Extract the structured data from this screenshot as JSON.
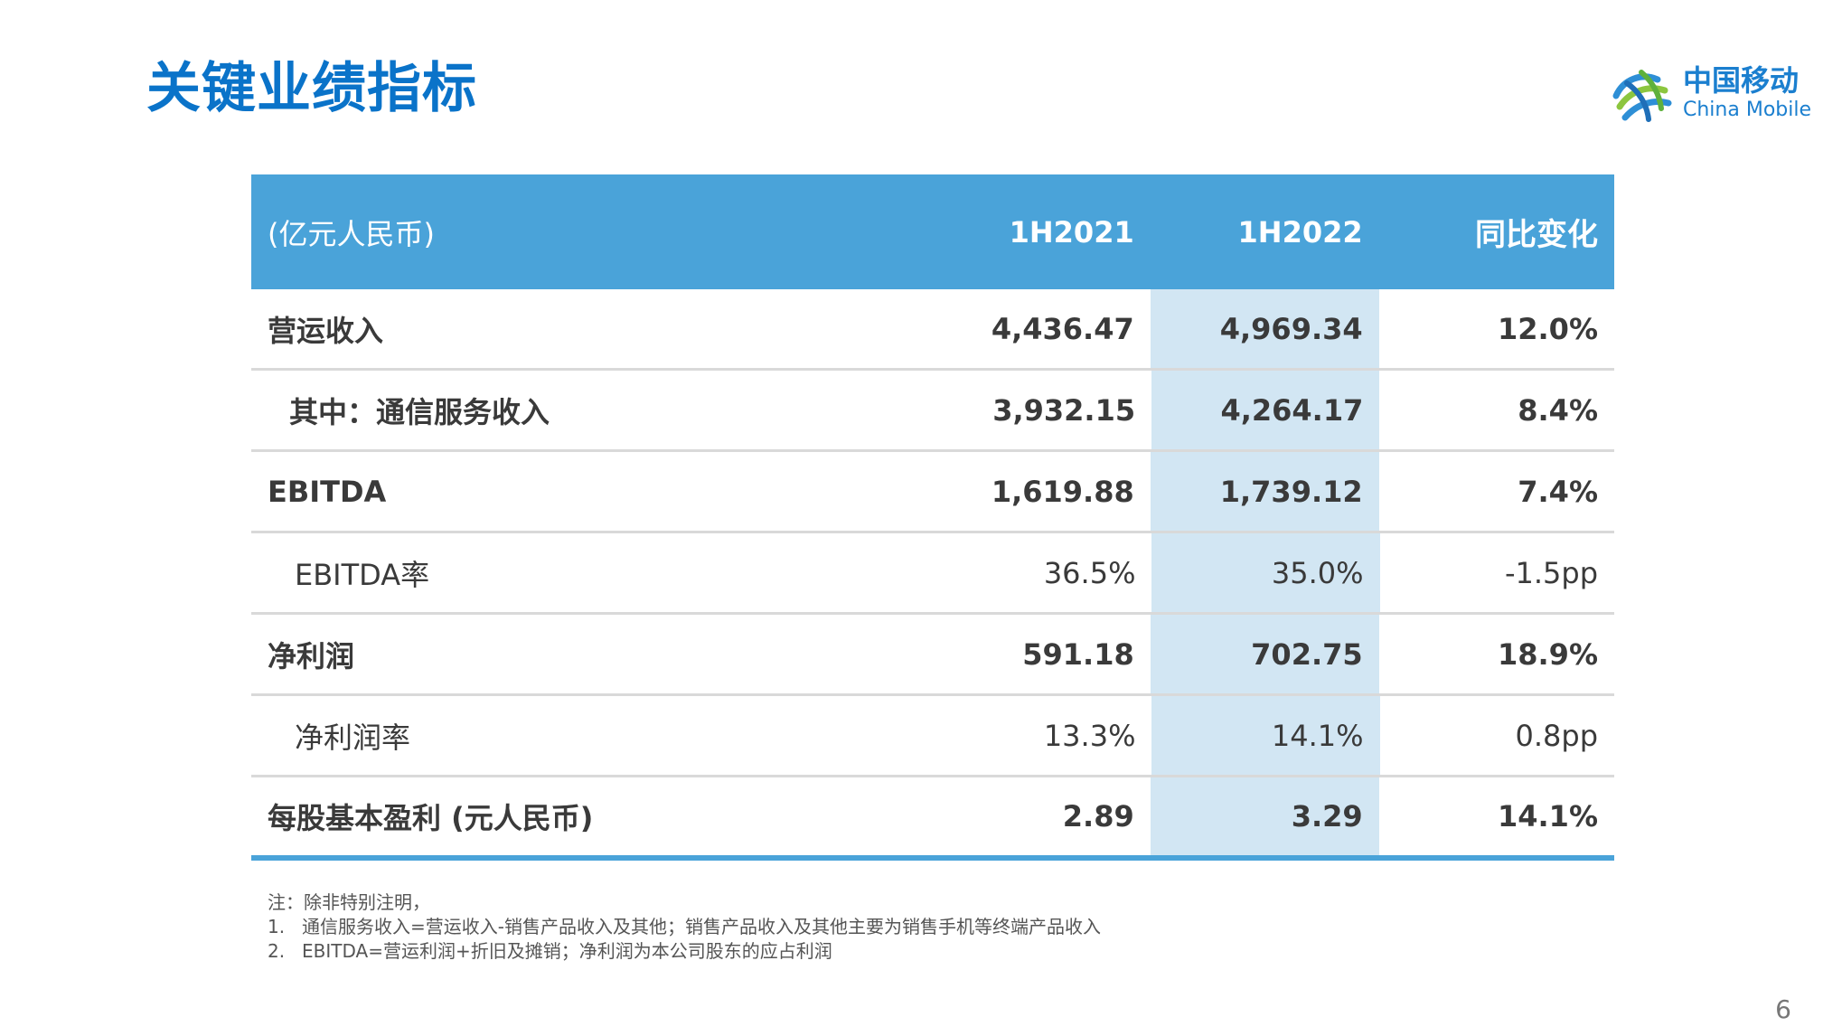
{
  "title": "关键业绩指标",
  "logo": {
    "cn": "中国移动",
    "en": "China Mobile",
    "icon": "china-mobile-logo-icon"
  },
  "table": {
    "headers": {
      "label": "(亿元人民币)",
      "col1": "1H2021",
      "col2": "1H2022",
      "col3": "同比变化"
    },
    "rows": [
      {
        "label": "营运收入",
        "v1": "4,436.47",
        "v2": "4,969.34",
        "v3": "12.0%"
      },
      {
        "label": "其中：通信服务收入",
        "v1": "3,932.15",
        "v2": "4,264.17",
        "v3": "8.4%"
      },
      {
        "label": "EBITDA",
        "v1": "1,619.88",
        "v2": "1,739.12",
        "v3": "7.4%"
      },
      {
        "label": "EBITDA率",
        "v1": "36.5%",
        "v2": "35.0%",
        "v3": "-1.5pp"
      },
      {
        "label": "净利润",
        "v1": "591.18",
        "v2": "702.75",
        "v3": "18.9%"
      },
      {
        "label": "净利润率",
        "v1": "13.3%",
        "v2": "14.1%",
        "v3": "0.8pp"
      },
      {
        "label": "每股基本盈利 (元人民币)",
        "v1": "2.89",
        "v2": "3.29",
        "v3": "14.1%"
      }
    ],
    "colors": {
      "header_bg": "#4aa3d9",
      "highlight_col_bg": "#d2e6f3",
      "title": "#0a73c9"
    }
  },
  "notes": {
    "intro": "注：除非特别注明，",
    "items": [
      {
        "num": "1.",
        "text": "通信服务收入=营运收入-销售产品收入及其他；销售产品收入及其他主要为销售手机等终端产品收入"
      },
      {
        "num": "2.",
        "text": "EBITDA=营运利润+折旧及摊销；净利润为本公司股东的应占利润"
      }
    ]
  },
  "page_number": "6"
}
